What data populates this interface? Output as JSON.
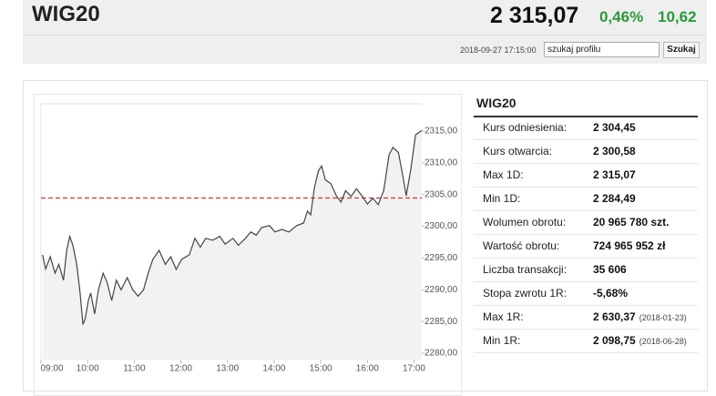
{
  "header": {
    "title": "WIG20",
    "price": "2 315,07",
    "change_pct": "0,46%",
    "change": "10,62",
    "timestamp": "2018-09-27 17:15:00",
    "search_placeholder": "szukaj profilu",
    "search_button": "Szukaj"
  },
  "stats": {
    "title": "WIG20",
    "rows": [
      {
        "label": "Kurs odniesienia:",
        "value": "2 304,45"
      },
      {
        "label": "Kurs otwarcia:",
        "value": "2 300,58"
      },
      {
        "label": "Max 1D:",
        "value": "2 315,07"
      },
      {
        "label": "Min 1D:",
        "value": "2 284,49"
      },
      {
        "label": "Wolumen obrotu:",
        "value": "20 965 780 szt."
      },
      {
        "label": "Wartość obrotu:",
        "value": "724 965 952 zł"
      },
      {
        "label": "Liczba transakcji:",
        "value": "35 606"
      },
      {
        "label": "Stopa zwrotu 1R:",
        "value": "-5,68%"
      },
      {
        "label": "Max 1R:",
        "value": "2 630,37",
        "date": "(2018-01-23)"
      },
      {
        "label": "Min 1R:",
        "value": "2 098,75",
        "date": "(2018-06-28)"
      }
    ]
  },
  "chart_data": {
    "type": "line",
    "color": "#444444",
    "area_color": "#f2f2f2",
    "reference": 2304.45,
    "reference_color": "#e03030",
    "x": [
      "09:02",
      "09:06",
      "09:12",
      "09:18",
      "09:23",
      "09:29",
      "09:33",
      "09:37",
      "09:41",
      "09:46",
      "09:50",
      "09:54",
      "09:57",
      "10:01",
      "10:04",
      "10:09",
      "10:14",
      "10:20",
      "10:25",
      "10:31",
      "10:37",
      "10:43",
      "10:51",
      "10:58",
      "11:05",
      "11:12",
      "11:18",
      "11:24",
      "11:32",
      "11:40",
      "11:47",
      "11:54",
      "12:01",
      "12:11",
      "12:18",
      "12:25",
      "12:32",
      "12:41",
      "12:50",
      "12:57",
      "13:07",
      "13:14",
      "13:23",
      "13:30",
      "13:37",
      "13:44",
      "13:54",
      "14:01",
      "14:10",
      "14:19",
      "14:29",
      "14:38",
      "14:43",
      "14:47",
      "14:52",
      "14:57",
      "15:01",
      "15:06",
      "15:13",
      "15:20",
      "15:26",
      "15:32",
      "15:39",
      "15:46",
      "15:53",
      "16:00",
      "16:07",
      "16:14",
      "16:21",
      "16:28",
      "16:33",
      "16:40",
      "16:46",
      "16:50",
      "16:56",
      "17:02",
      "17:10"
    ],
    "values": [
      2295.5,
      2293.3,
      2295.2,
      2292.6,
      2294.0,
      2291.5,
      2296.2,
      2298.4,
      2297.0,
      2294.0,
      2289.8,
      2284.5,
      2285.5,
      2288.3,
      2289.5,
      2286.2,
      2290.0,
      2292.6,
      2291.2,
      2288.3,
      2291.5,
      2290.0,
      2291.9,
      2290.0,
      2289.0,
      2290.0,
      2292.6,
      2294.8,
      2296.2,
      2294.0,
      2295.2,
      2293.2,
      2294.8,
      2295.5,
      2298.1,
      2296.7,
      2298.1,
      2297.8,
      2298.4,
      2297.2,
      2298.1,
      2297.0,
      2298.1,
      2299.1,
      2298.6,
      2299.8,
      2300.1,
      2299.1,
      2299.5,
      2299.1,
      2300.1,
      2300.5,
      2302.4,
      2301.8,
      2306.2,
      2308.7,
      2309.5,
      2307.3,
      2306.7,
      2304.8,
      2303.8,
      2305.6,
      2304.7,
      2305.9,
      2304.8,
      2303.5,
      2304.4,
      2303.4,
      2305.6,
      2311.3,
      2312.4,
      2311.6,
      2307.7,
      2304.8,
      2309.1,
      2314.4,
      2315.07
    ],
    "xlim": [
      "09:00",
      "17:10"
    ],
    "xticks": [
      "09:00",
      "10:00",
      "11:00",
      "12:00",
      "13:00",
      "14:00",
      "15:00",
      "16:00",
      "17:00"
    ],
    "ylim": [
      2279,
      2319
    ],
    "yticks": [
      {
        "value": 2280,
        "label": "2280,00"
      },
      {
        "value": 2285,
        "label": "2285,00"
      },
      {
        "value": 2290,
        "label": "2290,00"
      },
      {
        "value": 2295,
        "label": "2295,00"
      },
      {
        "value": 2300,
        "label": "2300,00"
      },
      {
        "value": 2305,
        "label": "2305,00"
      },
      {
        "value": 2310,
        "label": "2310,00"
      },
      {
        "value": 2315,
        "label": "2315,00"
      }
    ]
  }
}
